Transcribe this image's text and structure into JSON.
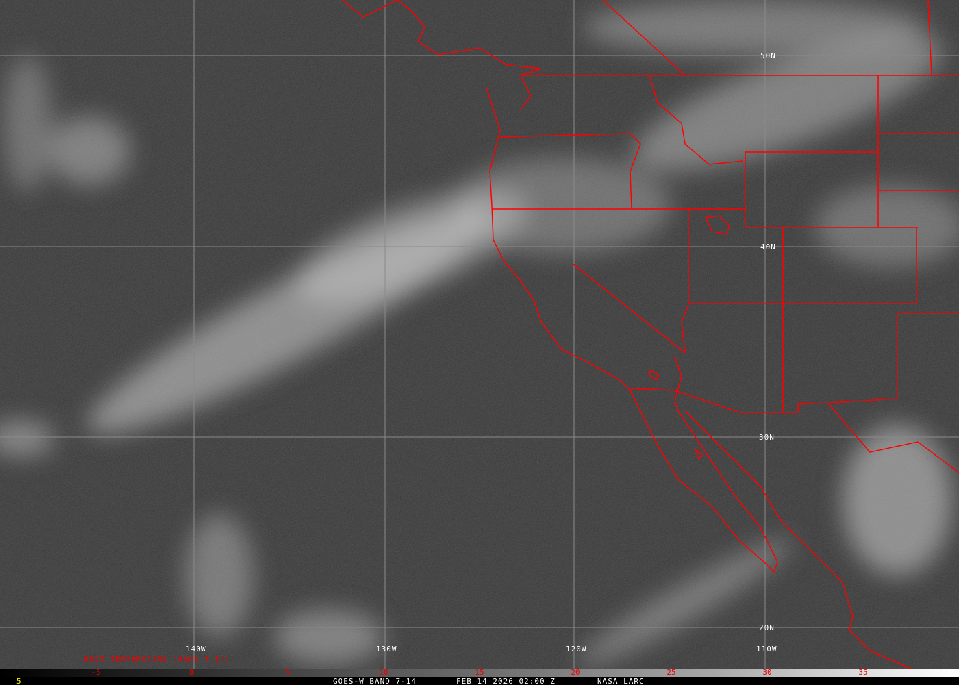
{
  "image": {
    "satellite_label": "GOES-W BAND 7-14",
    "date_time": "FEB 14 2026 02:00 Z",
    "credit": "NASA LARC",
    "frame_number": "5"
  },
  "colorbar": {
    "title": "BRIT TEMPERATURE (BAND 7-14)",
    "ticks": [
      "-5",
      "0",
      "5",
      "10",
      "15",
      "20",
      "25",
      "30",
      "35"
    ],
    "range": [
      -10,
      40
    ],
    "gradient": "black-to-white",
    "tick_color": "#ee0000"
  },
  "grid": {
    "latitudes": [
      "50N",
      "40N",
      "30N",
      "20N"
    ],
    "longitudes": [
      "140W",
      "130W",
      "120W",
      "110W"
    ]
  },
  "colors": {
    "boundaries": "#ff0000",
    "grid": "#8a8a8a",
    "labels": "#ffffff"
  }
}
